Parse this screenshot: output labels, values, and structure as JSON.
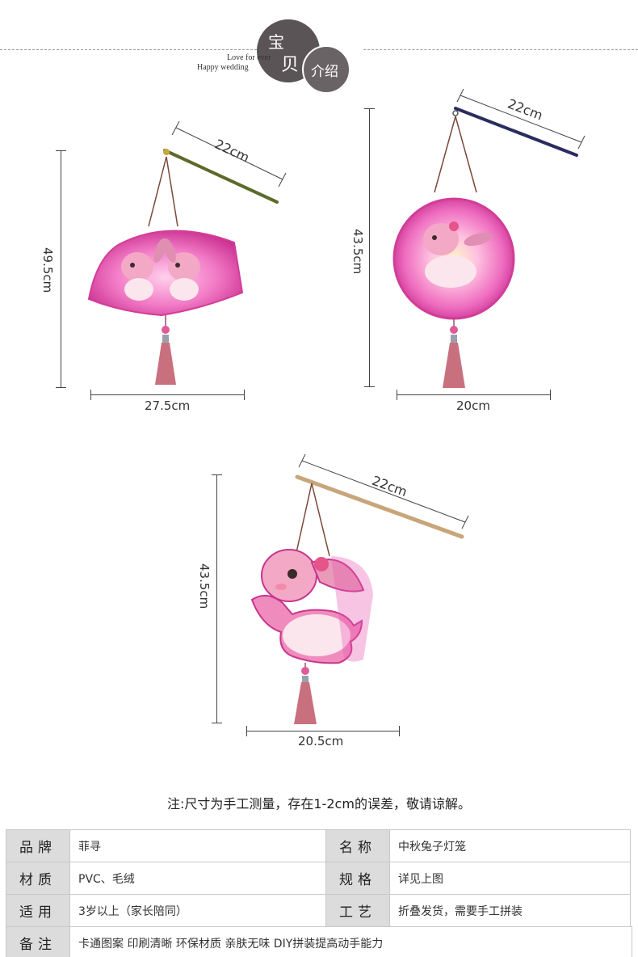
{
  "header": {
    "char_1": "宝",
    "char_2": "贝",
    "char_3": "介绍",
    "tagline_1": "Love for ever",
    "tagline_2": "Happy wedding"
  },
  "products": {
    "fan": {
      "height": "49.5cm",
      "width": "27.5cm",
      "stick": "22cm"
    },
    "round": {
      "height": "43.5cm",
      "width": "20cm",
      "stick": "22cm"
    },
    "rabbit": {
      "height": "43.5cm",
      "width": "20.5cm",
      "stick": "22cm"
    }
  },
  "note": "注:尺寸为手工测量，存在1-2cm的误差，敬请谅解。",
  "specs": {
    "brand_label": "品牌",
    "brand_value": "菲寻",
    "name_label": "名称",
    "name_value": "中秋兔子灯笼",
    "material_label": "材质",
    "material_value": "PVC、毛绒",
    "size_label": "规格",
    "size_value": "详见上图",
    "age_label": "适用",
    "age_value": "3岁以上（家长陪同）",
    "craft_label": "工艺",
    "craft_value": "折叠发货，需要手工拼装",
    "remark_label": "备注",
    "remark_value": "卡通图案 印刷清晰 环保材质 亲肤无味 DIY拼装提高动手能力"
  },
  "colors": {
    "lantern_pink": "#e85ab0",
    "tassel": "#c9707e",
    "stick_fan": "#5d6a2a",
    "stick_round": "#2a2d5e",
    "stick_wood": "#c8a67a",
    "header_circle": "#5b5457",
    "table_key_bg": "#dcdcdc"
  }
}
